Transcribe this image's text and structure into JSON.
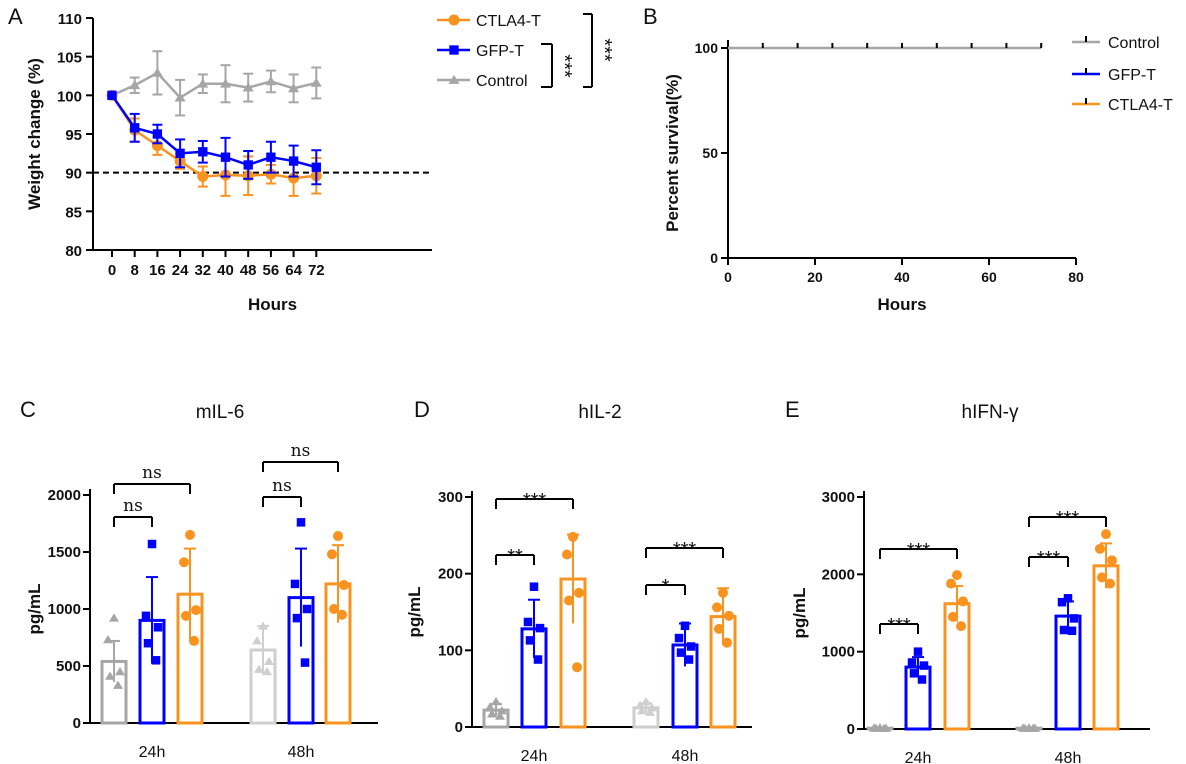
{
  "colors": {
    "control": "#a6a6a6",
    "gfp": "#0000ff",
    "ctla4": "#f7931e",
    "control_48h": "#cfcfcf"
  },
  "chart_data": [
    {
      "panel": "A",
      "type": "line",
      "xlabel": "Hours",
      "ylabel": "Weight change (%)",
      "x": [
        0,
        8,
        16,
        24,
        32,
        40,
        48,
        56,
        64,
        72
      ],
      "xticks": [
        "0",
        "8",
        "16",
        "24",
        "32",
        "40",
        "48",
        "56",
        "64",
        "72"
      ],
      "yticks": [
        "80",
        "85",
        "90",
        "95",
        "100",
        "105",
        "110"
      ],
      "ylim": [
        80,
        110
      ],
      "reference_line": 90,
      "series": [
        {
          "name": "Control",
          "color": "control",
          "marker": "triangle",
          "values": [
            100,
            101.3,
            102.9,
            99.7,
            101.5,
            101.5,
            101.0,
            101.8,
            100.9,
            101.6
          ],
          "errors": [
            0,
            1.0,
            2.8,
            2.3,
            1.2,
            2.4,
            1.8,
            1.4,
            1.8,
            2.0
          ]
        },
        {
          "name": "GFP-T",
          "color": "gfp",
          "marker": "square",
          "values": [
            100,
            95.8,
            95.0,
            92.5,
            92.7,
            92.0,
            91.0,
            92.0,
            91.5,
            90.7
          ],
          "errors": [
            0,
            1.8,
            1.2,
            1.8,
            1.4,
            2.5,
            1.8,
            2.0,
            2.0,
            2.2
          ]
        },
        {
          "name": "CTLA4-T",
          "color": "ctla4",
          "marker": "circle",
          "values": [
            100,
            95.5,
            93.5,
            91.5,
            89.5,
            89.7,
            89.6,
            89.8,
            89.3,
            89.6
          ],
          "errors": [
            0,
            1.5,
            1.2,
            1.0,
            1.3,
            2.7,
            2.5,
            1.2,
            2.3,
            2.3
          ]
        }
      ],
      "legend": [
        "CTLA4-T",
        "GFP-T",
        "Control"
      ],
      "significance": [
        "***",
        "***"
      ]
    },
    {
      "panel": "B",
      "type": "line",
      "xlabel": "Hours",
      "ylabel": "Percent survival(%)",
      "xticks": [
        "0",
        "20",
        "40",
        "60",
        "80"
      ],
      "yticks": [
        "0",
        "50",
        "100"
      ],
      "xlim": [
        0,
        80
      ],
      "ylim": [
        0,
        100
      ],
      "censor_x": [
        8,
        16,
        24,
        32,
        40,
        48,
        56,
        64,
        72
      ],
      "series": [
        {
          "name": "Control",
          "color": "control",
          "values": [
            100,
            100
          ]
        },
        {
          "name": "GFP-T",
          "color": "gfp",
          "values": [
            100,
            100
          ]
        },
        {
          "name": "CTLA4-T",
          "color": "ctla4",
          "values": [
            100,
            100
          ]
        }
      ],
      "legend": [
        "Control",
        "GFP-T",
        "CTLA4-T"
      ]
    },
    {
      "panel": "C",
      "type": "bar",
      "title": "mIL-6",
      "ylabel": "pg/mL",
      "categories": [
        "24h",
        "48h"
      ],
      "yticks": [
        "0",
        "500",
        "1000",
        "1500",
        "2000"
      ],
      "ylim": [
        0,
        2000
      ],
      "series": [
        {
          "name": "Control",
          "color": "control",
          "marker": "triangle",
          "values": [
            540,
            640
          ],
          "errors": [
            180,
            210
          ],
          "points": [
            [
              920,
              730,
              450,
              410,
              330
            ],
            [
              850,
              720,
              540,
              470,
              450
            ]
          ]
        },
        {
          "name": "GFP-T",
          "color": "gfp",
          "marker": "square",
          "values": [
            900,
            1100
          ],
          "errors": [
            380,
            430
          ],
          "points": [
            [
              1570,
              940,
              840,
              700,
              550
            ],
            [
              1760,
              1220,
              1000,
              920,
              530
            ]
          ]
        },
        {
          "name": "CTLA4-T",
          "color": "ctla4",
          "marker": "circle",
          "values": [
            1130,
            1220
          ],
          "errors": [
            400,
            340
          ],
          "points": [
            [
              1650,
              1410,
              990,
              940,
              720
            ],
            [
              1640,
              1480,
              1210,
              1000,
              950
            ]
          ]
        }
      ],
      "comparisons": [
        {
          "group": 0,
          "from": 0,
          "to": 1,
          "label": "ns"
        },
        {
          "group": 0,
          "from": 0,
          "to": 2,
          "label": "ns"
        },
        {
          "group": 1,
          "from": 0,
          "to": 1,
          "label": "ns"
        },
        {
          "group": 1,
          "from": 0,
          "to": 2,
          "label": "ns"
        }
      ]
    },
    {
      "panel": "D",
      "type": "bar",
      "title": "hIL-2",
      "ylabel": "pg/mL",
      "categories": [
        "24h",
        "48h"
      ],
      "yticks": [
        "0",
        "100",
        "200",
        "300"
      ],
      "ylim": [
        0,
        300
      ],
      "series": [
        {
          "name": "Control",
          "color": "control",
          "marker": "triangle",
          "values": [
            22,
            25
          ],
          "errors": [
            8,
            6
          ],
          "points": [
            [
              33,
              26,
              21,
              17,
              14
            ],
            [
              33,
              28,
              25,
              21,
              19
            ]
          ]
        },
        {
          "name": "GFP-T",
          "color": "gfp",
          "marker": "square",
          "values": [
            128,
            107
          ],
          "errors": [
            38,
            28
          ],
          "points": [
            [
              183,
              137,
              129,
              113,
              88
            ],
            [
              132,
              116,
              105,
              97,
              88
            ]
          ]
        },
        {
          "name": "CTLA4-T",
          "color": "ctla4",
          "marker": "circle",
          "values": [
            193,
            144
          ],
          "errors": [
            58,
            37
          ],
          "points": [
            [
              248,
              225,
              175,
              165,
              78
            ],
            [
              175,
              156,
              145,
              128,
              110
            ]
          ]
        }
      ],
      "comparisons": [
        {
          "group": 0,
          "from": 0,
          "to": 1,
          "label": "**"
        },
        {
          "group": 0,
          "from": 0,
          "to": 2,
          "label": "***"
        },
        {
          "group": 1,
          "from": 0,
          "to": 1,
          "label": "*"
        },
        {
          "group": 1,
          "from": 0,
          "to": 2,
          "label": "***"
        }
      ]
    },
    {
      "panel": "E",
      "type": "bar",
      "title": "hIFN-γ",
      "ylabel": "pg/mL",
      "categories": [
        "24h",
        "48h"
      ],
      "yticks": [
        "0",
        "1000",
        "2000",
        "3000"
      ],
      "ylim": [
        0,
        3000
      ],
      "series": [
        {
          "name": "Control",
          "color": "control",
          "marker": "triangle",
          "values": [
            10,
            10
          ],
          "errors": [
            5,
            5
          ],
          "points": [
            [
              14,
              12,
              10,
              8,
              6
            ],
            [
              14,
              12,
              10,
              8,
              6
            ]
          ]
        },
        {
          "name": "GFP-T",
          "color": "gfp",
          "marker": "square",
          "values": [
            800,
            1460
          ],
          "errors": [
            130,
            190
          ],
          "points": [
            [
              1000,
              860,
              820,
              720,
              640
            ],
            [
              1690,
              1640,
              1430,
              1280,
              1270
            ]
          ]
        },
        {
          "name": "CTLA4-T",
          "color": "ctla4",
          "marker": "circle",
          "values": [
            1620,
            2110
          ],
          "errors": [
            230,
            290
          ],
          "points": [
            [
              1990,
              1880,
              1650,
              1450,
              1330
            ],
            [
              2520,
              2330,
              2180,
              1960,
              1880
            ]
          ]
        }
      ],
      "comparisons": [
        {
          "group": 0,
          "from": 0,
          "to": 1,
          "label": "***"
        },
        {
          "group": 0,
          "from": 0,
          "to": 2,
          "label": "***"
        },
        {
          "group": 1,
          "from": 0,
          "to": 1,
          "label": "***"
        },
        {
          "group": 1,
          "from": 0,
          "to": 2,
          "label": "***"
        }
      ]
    }
  ]
}
